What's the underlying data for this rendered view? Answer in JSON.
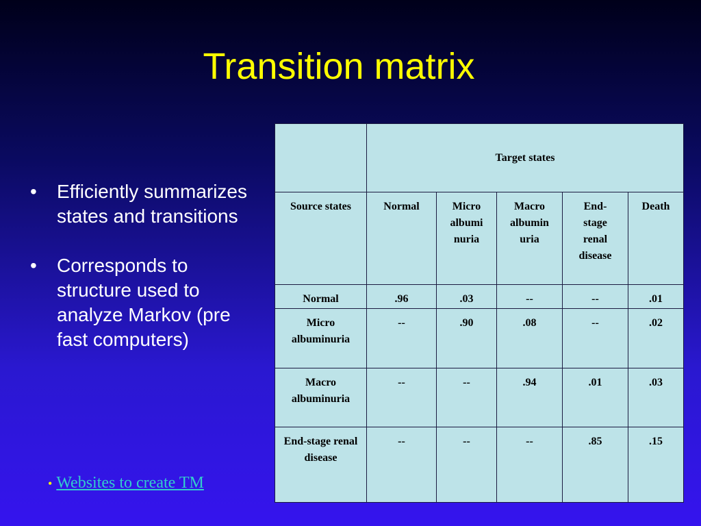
{
  "title": "Transition matrix",
  "bullets": [
    "Efficiently summarizes states and transitions",
    "Corresponds to structure used to analyze Markov (pre fast computers)"
  ],
  "link": {
    "bullet": "•",
    "text": "Websites to create TM"
  },
  "table": {
    "header": {
      "title": "Target states"
    },
    "columns": [
      [
        "Source states"
      ],
      [
        "Normal"
      ],
      [
        "Micro",
        "albumi",
        "nuria"
      ],
      [
        "Macro",
        "albumin",
        "uria"
      ],
      [
        "End-",
        "stage",
        "renal",
        "disease"
      ],
      [
        "Death"
      ]
    ],
    "rows": [
      [
        "Normal",
        ".96",
        ".03",
        "--",
        "--",
        ".01"
      ],
      [
        "Micro albuminuria",
        "--",
        ".90",
        ".08",
        "--",
        ".02"
      ],
      [
        "Macro albuminuria",
        "--",
        "--",
        ".94",
        ".01",
        ".03"
      ],
      [
        "End-stage renal disease",
        "--",
        "--",
        "--",
        ".85",
        ".15"
      ]
    ]
  }
}
